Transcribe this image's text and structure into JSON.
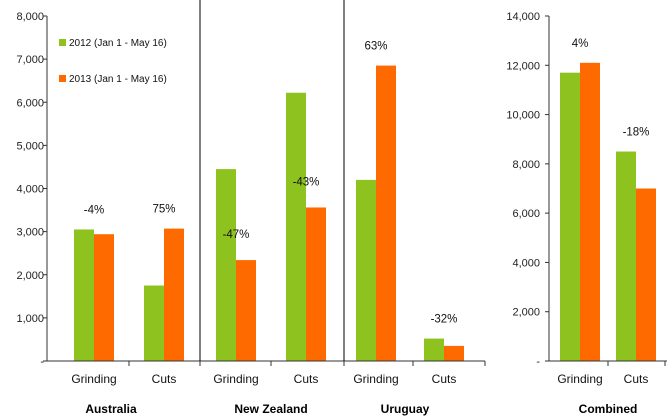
{
  "chart_data": [
    {
      "type": "bar",
      "ylim": [
        0,
        8000
      ],
      "yticks": [
        "-",
        "1,000",
        "2,000",
        "3,000",
        "4,000",
        "5,000",
        "6,000",
        "7,000",
        "8,000"
      ],
      "ytick_values": [
        0,
        1000,
        2000,
        3000,
        4000,
        5000,
        6000,
        7000,
        8000
      ],
      "legend_position": "top-left",
      "series": [
        {
          "name": "2012 (Jan 1 - May 16)",
          "color": "#8dc21f"
        },
        {
          "name": "2013 (Jan 1 - May 16)",
          "color": "#ff6a00"
        }
      ],
      "groups": [
        {
          "name": "Australia",
          "categories": [
            "Grinding",
            "Cuts"
          ],
          "values_2012": [
            3050,
            1750
          ],
          "values_2013": [
            2940,
            3070
          ],
          "change_labels": [
            "-4%",
            "75%"
          ]
        },
        {
          "name": "New Zealand",
          "categories": [
            "Grinding",
            "Cuts"
          ],
          "values_2012": [
            4450,
            6220
          ],
          "values_2013": [
            2340,
            3560
          ],
          "change_labels": [
            "-47%",
            "-43%"
          ]
        },
        {
          "name": "Uruguay",
          "categories": [
            "Grinding",
            "Cuts"
          ],
          "values_2012": [
            4200,
            520
          ],
          "values_2013": [
            6850,
            350
          ],
          "change_labels": [
            "63%",
            "-32%"
          ]
        }
      ]
    },
    {
      "type": "bar",
      "ylim": [
        0,
        14000
      ],
      "yticks": [
        "-",
        "2,000",
        "4,000",
        "6,000",
        "8,000",
        "10,000",
        "12,000",
        "14,000"
      ],
      "ytick_values": [
        0,
        2000,
        4000,
        6000,
        8000,
        10000,
        12000,
        14000
      ],
      "series": [
        {
          "name": "2012 (Jan 1 - May 16)",
          "color": "#8dc21f"
        },
        {
          "name": "2013 (Jan 1 - May 16)",
          "color": "#ff6a00"
        }
      ],
      "groups": [
        {
          "name": "Combined",
          "categories": [
            "Grinding",
            "Cuts"
          ],
          "values_2012": [
            11700,
            8500
          ],
          "values_2013": [
            12100,
            7000
          ],
          "change_labels": [
            "4%",
            "-18%"
          ]
        }
      ]
    }
  ]
}
